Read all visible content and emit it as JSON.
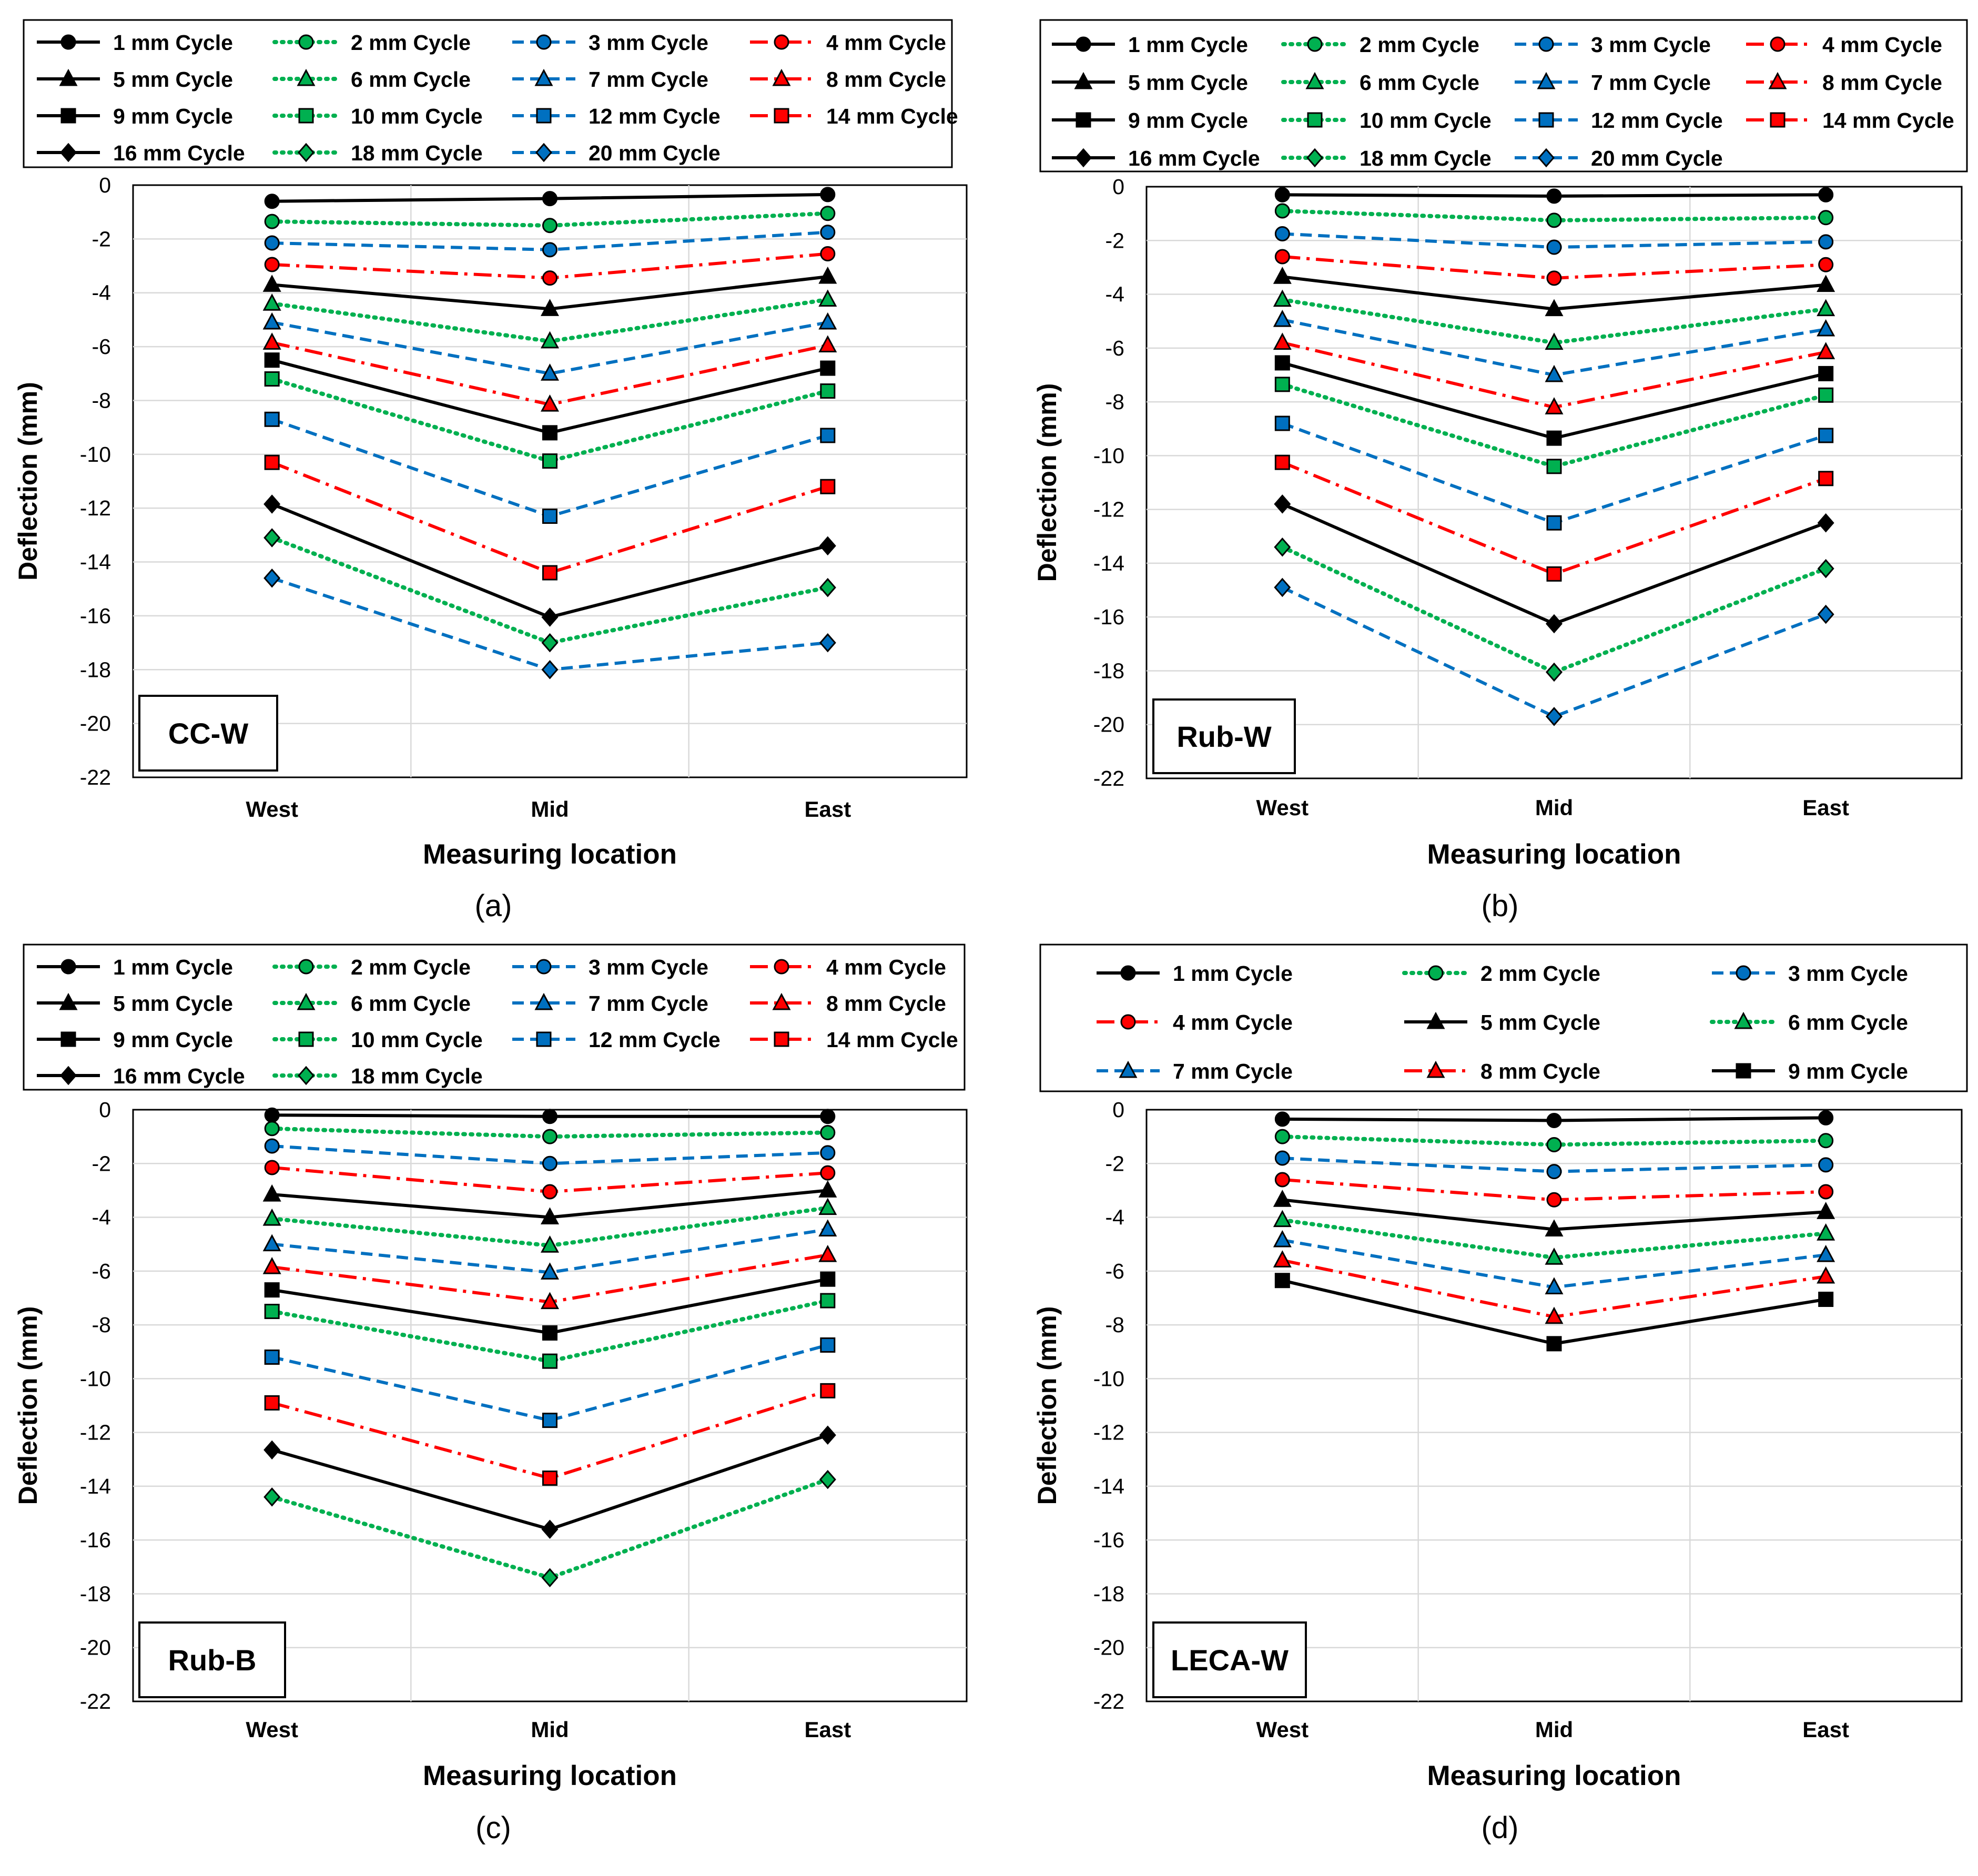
{
  "colors": {
    "black": "#000000",
    "green": "#00B050",
    "blue": "#0070C0",
    "red": "#FF0000",
    "grid": "#D9D9D9"
  },
  "series_styles": {
    "1 mm Cycle": {
      "color": "black",
      "dash": "solid",
      "marker": "circle"
    },
    "2 mm Cycle": {
      "color": "green",
      "dash": "dotted",
      "marker": "circle"
    },
    "3 mm Cycle": {
      "color": "blue",
      "dash": "dashed",
      "marker": "circle"
    },
    "4 mm Cycle": {
      "color": "red",
      "dash": "dashdot",
      "marker": "circle"
    },
    "5 mm Cycle": {
      "color": "black",
      "dash": "solid",
      "marker": "triangle"
    },
    "6 mm Cycle": {
      "color": "green",
      "dash": "dotted",
      "marker": "triangle"
    },
    "7 mm Cycle": {
      "color": "blue",
      "dash": "dashed",
      "marker": "triangle"
    },
    "8 mm Cycle": {
      "color": "red",
      "dash": "dashdot",
      "marker": "triangle"
    },
    "9 mm Cycle": {
      "color": "black",
      "dash": "solid",
      "marker": "square"
    },
    "10 mm Cycle": {
      "color": "green",
      "dash": "dotted",
      "marker": "square"
    },
    "12 mm Cycle": {
      "color": "blue",
      "dash": "dashed",
      "marker": "square"
    },
    "14 mm Cycle": {
      "color": "red",
      "dash": "dashdot",
      "marker": "square"
    },
    "16 mm Cycle": {
      "color": "black",
      "dash": "solid",
      "marker": "diamond"
    },
    "18 mm Cycle": {
      "color": "green",
      "dash": "dotted",
      "marker": "diamond"
    },
    "20 mm Cycle": {
      "color": "blue",
      "dash": "dashed",
      "marker": "diamond"
    }
  },
  "chart_data": [
    {
      "type": "line",
      "panel_label": "(a)",
      "specimen_label": "CC-W",
      "xlabel": "Measuring location",
      "ylabel": "Deflection (mm)",
      "categories": [
        "West",
        "Mid",
        "East"
      ],
      "ylim": [
        -22,
        0
      ],
      "yticks": [
        0,
        -2,
        -4,
        -6,
        -8,
        -10,
        -12,
        -14,
        -16,
        -18,
        -20,
        -22
      ],
      "grid": true,
      "legend_columns": 4,
      "series": [
        {
          "name": "1 mm Cycle",
          "values": [
            -0.6,
            -0.5,
            -0.35
          ]
        },
        {
          "name": "2 mm Cycle",
          "values": [
            -1.35,
            -1.5,
            -1.05
          ]
        },
        {
          "name": "3 mm Cycle",
          "values": [
            -2.15,
            -2.4,
            -1.75
          ]
        },
        {
          "name": "4 mm Cycle",
          "values": [
            -2.95,
            -3.45,
            -2.55
          ]
        },
        {
          "name": "5 mm Cycle",
          "values": [
            -3.7,
            -4.6,
            -3.4
          ]
        },
        {
          "name": "6 mm Cycle",
          "values": [
            -4.4,
            -5.8,
            -4.25
          ]
        },
        {
          "name": "7 mm Cycle",
          "values": [
            -5.1,
            -7.0,
            -5.1
          ]
        },
        {
          "name": "8 mm Cycle",
          "values": [
            -5.85,
            -8.15,
            -5.95
          ]
        },
        {
          "name": "9 mm Cycle",
          "values": [
            -6.5,
            -9.2,
            -6.8
          ]
        },
        {
          "name": "10 mm Cycle",
          "values": [
            -7.2,
            -10.25,
            -7.65
          ]
        },
        {
          "name": "12 mm Cycle",
          "values": [
            -8.7,
            -12.3,
            -9.3
          ]
        },
        {
          "name": "14 mm Cycle",
          "values": [
            -10.3,
            -14.4,
            -11.2
          ]
        },
        {
          "name": "16 mm Cycle",
          "values": [
            -11.85,
            -16.05,
            -13.4
          ]
        },
        {
          "name": "18 mm Cycle",
          "values": [
            -13.1,
            -17.0,
            -14.95
          ]
        },
        {
          "name": "20 mm Cycle",
          "values": [
            -14.6,
            -18.0,
            -17.0
          ]
        }
      ]
    },
    {
      "type": "line",
      "panel_label": "(b)",
      "specimen_label": "Rub-W",
      "xlabel": "Measuring location",
      "ylabel": "Deflection (mm)",
      "categories": [
        "West",
        "Mid",
        "East"
      ],
      "ylim": [
        -22,
        0
      ],
      "yticks": [
        0,
        -2,
        -4,
        -6,
        -8,
        -10,
        -12,
        -14,
        -16,
        -18,
        -20,
        -22
      ],
      "grid": true,
      "legend_columns": 4,
      "series": [
        {
          "name": "1 mm Cycle",
          "values": [
            -0.3,
            -0.35,
            -0.3
          ]
        },
        {
          "name": "2 mm Cycle",
          "values": [
            -0.9,
            -1.25,
            -1.15
          ]
        },
        {
          "name": "3 mm Cycle",
          "values": [
            -1.75,
            -2.25,
            -2.05
          ]
        },
        {
          "name": "4 mm Cycle",
          "values": [
            -2.6,
            -3.4,
            -2.9
          ]
        },
        {
          "name": "5 mm Cycle",
          "values": [
            -3.35,
            -4.55,
            -3.65
          ]
        },
        {
          "name": "6 mm Cycle",
          "values": [
            -4.2,
            -5.8,
            -4.55
          ]
        },
        {
          "name": "7 mm Cycle",
          "values": [
            -4.95,
            -7.0,
            -5.3
          ]
        },
        {
          "name": "8 mm Cycle",
          "values": [
            -5.8,
            -8.2,
            -6.15
          ]
        },
        {
          "name": "9 mm Cycle",
          "values": [
            -6.55,
            -9.35,
            -6.95
          ]
        },
        {
          "name": "10 mm Cycle",
          "values": [
            -7.35,
            -10.4,
            -7.75
          ]
        },
        {
          "name": "12 mm Cycle",
          "values": [
            -8.8,
            -12.5,
            -9.25
          ]
        },
        {
          "name": "14 mm Cycle",
          "values": [
            -10.25,
            -14.4,
            -10.85
          ]
        },
        {
          "name": "16 mm Cycle",
          "values": [
            -11.8,
            -16.25,
            -12.5
          ]
        },
        {
          "name": "18 mm Cycle",
          "values": [
            -13.4,
            -18.05,
            -14.2
          ]
        },
        {
          "name": "20 mm Cycle",
          "values": [
            -14.9,
            -19.7,
            -15.9
          ]
        }
      ]
    },
    {
      "type": "line",
      "panel_label": "(c)",
      "specimen_label": "Rub-B",
      "xlabel": "Measuring location",
      "ylabel": "Deflection (mm)",
      "categories": [
        "West",
        "Mid",
        "East"
      ],
      "ylim": [
        -22,
        0
      ],
      "yticks": [
        0,
        -2,
        -4,
        -6,
        -8,
        -10,
        -12,
        -14,
        -16,
        -18,
        -20,
        -22
      ],
      "grid": true,
      "legend_columns": 4,
      "series": [
        {
          "name": "1 mm Cycle",
          "values": [
            -0.2,
            -0.25,
            -0.25
          ]
        },
        {
          "name": "2 mm Cycle",
          "values": [
            -0.7,
            -1.0,
            -0.85
          ]
        },
        {
          "name": "3 mm Cycle",
          "values": [
            -1.35,
            -2.0,
            -1.6
          ]
        },
        {
          "name": "4 mm Cycle",
          "values": [
            -2.15,
            -3.05,
            -2.35
          ]
        },
        {
          "name": "5 mm Cycle",
          "values": [
            -3.15,
            -4.0,
            -3.0
          ]
        },
        {
          "name": "6 mm Cycle",
          "values": [
            -4.05,
            -5.05,
            -3.65
          ]
        },
        {
          "name": "7 mm Cycle",
          "values": [
            -5.0,
            -6.05,
            -4.45
          ]
        },
        {
          "name": "8 mm Cycle",
          "values": [
            -5.85,
            -7.15,
            -5.4
          ]
        },
        {
          "name": "9 mm Cycle",
          "values": [
            -6.7,
            -8.3,
            -6.3
          ]
        },
        {
          "name": "10 mm Cycle",
          "values": [
            -7.5,
            -9.35,
            -7.1
          ]
        },
        {
          "name": "12 mm Cycle",
          "values": [
            -9.2,
            -11.55,
            -8.75
          ]
        },
        {
          "name": "14 mm Cycle",
          "values": [
            -10.9,
            -13.7,
            -10.45
          ]
        },
        {
          "name": "16 mm Cycle",
          "values": [
            -12.65,
            -15.6,
            -12.1
          ]
        },
        {
          "name": "18 mm Cycle",
          "values": [
            -14.4,
            -17.4,
            -13.75
          ]
        }
      ]
    },
    {
      "type": "line",
      "panel_label": "(d)",
      "specimen_label": "LECA-W",
      "xlabel": "Measuring location",
      "ylabel": "Deflection (mm)",
      "categories": [
        "West",
        "Mid",
        "East"
      ],
      "ylim": [
        -22,
        0
      ],
      "yticks": [
        0,
        -2,
        -4,
        -6,
        -8,
        -10,
        -12,
        -14,
        -16,
        -18,
        -20,
        -22
      ],
      "grid": true,
      "legend_columns": 3,
      "series": [
        {
          "name": "1 mm Cycle",
          "values": [
            -0.35,
            -0.4,
            -0.3
          ]
        },
        {
          "name": "2 mm Cycle",
          "values": [
            -1.0,
            -1.3,
            -1.15
          ]
        },
        {
          "name": "3 mm Cycle",
          "values": [
            -1.8,
            -2.3,
            -2.05
          ]
        },
        {
          "name": "4 mm Cycle",
          "values": [
            -2.6,
            -3.35,
            -3.05
          ]
        },
        {
          "name": "5 mm Cycle",
          "values": [
            -3.35,
            -4.45,
            -3.8
          ]
        },
        {
          "name": "6 mm Cycle",
          "values": [
            -4.1,
            -5.5,
            -4.6
          ]
        },
        {
          "name": "7 mm Cycle",
          "values": [
            -4.85,
            -6.6,
            -5.4
          ]
        },
        {
          "name": "8 mm Cycle",
          "values": [
            -5.6,
            -7.7,
            -6.2
          ]
        },
        {
          "name": "9 mm Cycle",
          "values": [
            -6.35,
            -8.7,
            -7.05
          ]
        }
      ]
    }
  ]
}
